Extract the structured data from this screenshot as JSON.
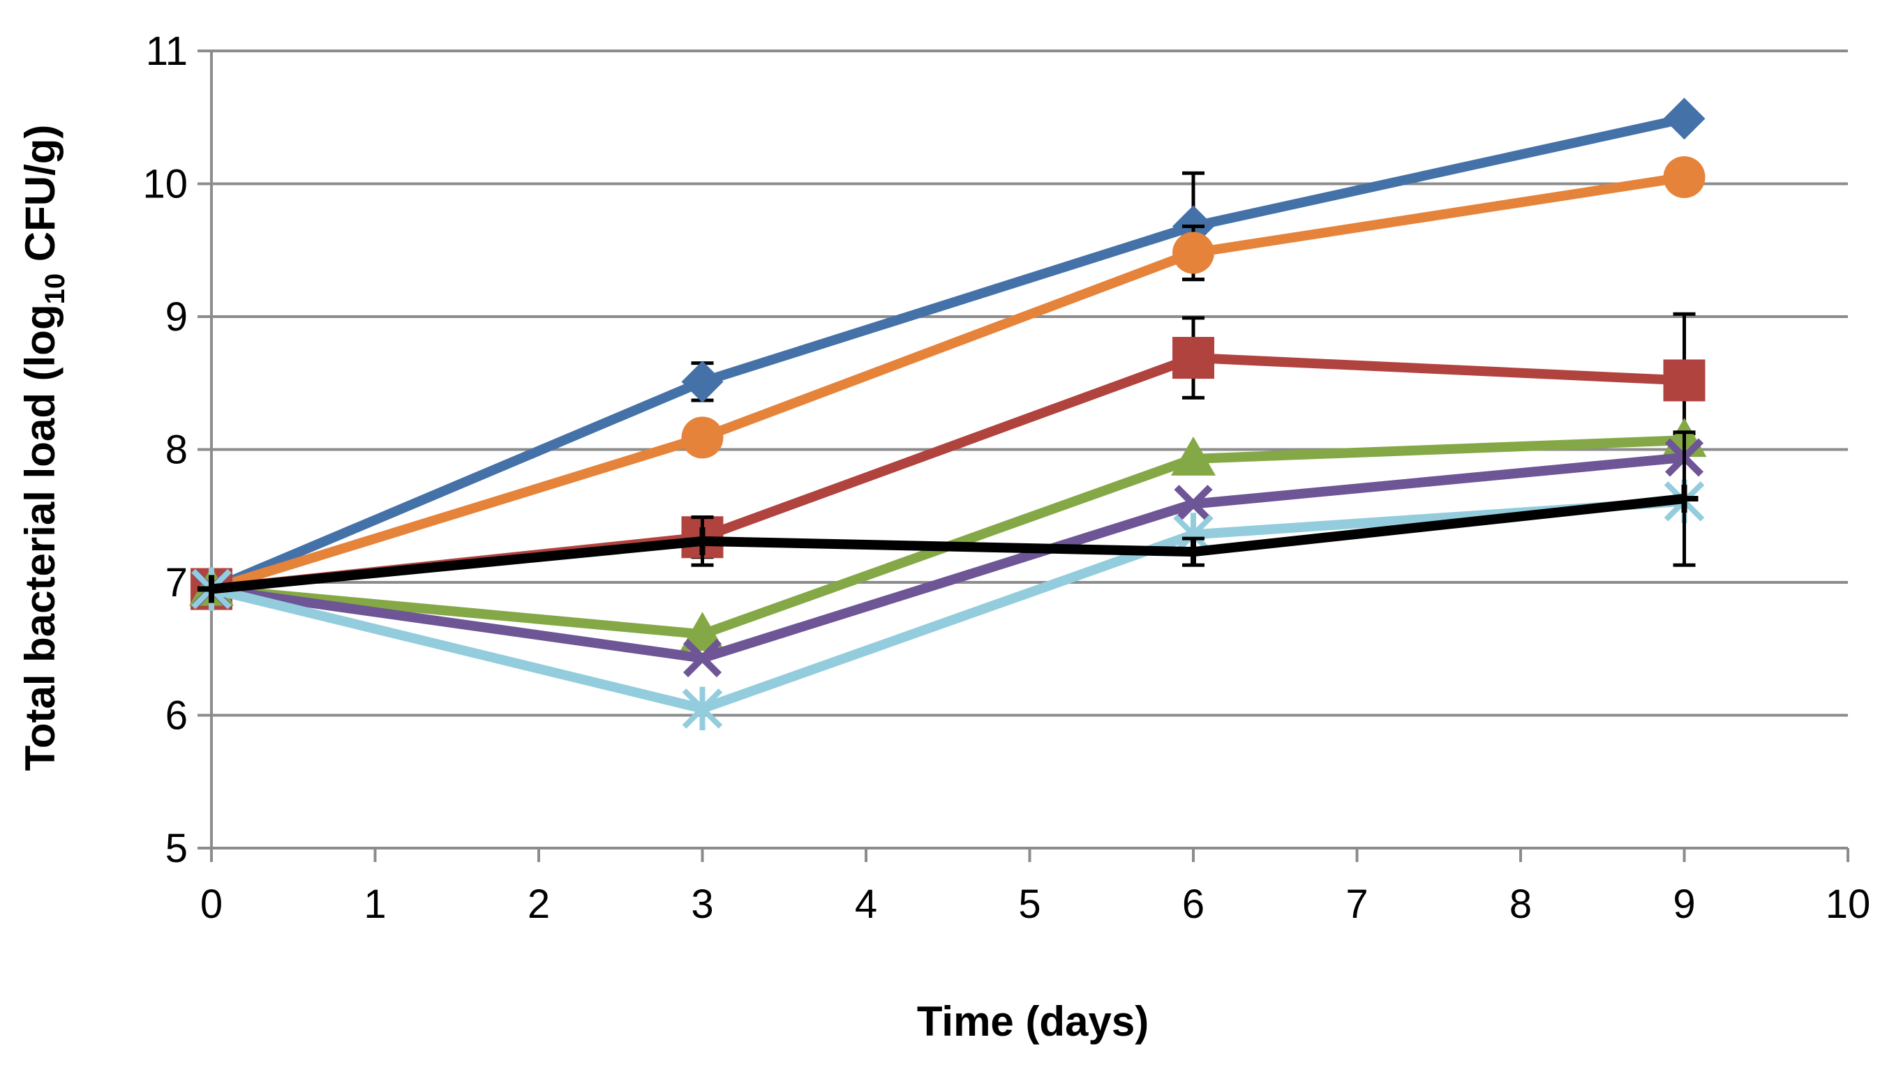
{
  "chart_data": {
    "type": "line",
    "title": "",
    "xlabel": "Time (days)",
    "ylabel_main": "Total bacterial load (log",
    "ylabel_sub": "10",
    "ylabel_tail": " CFU/g)",
    "xlim": [
      0,
      10
    ],
    "ylim": [
      5,
      11
    ],
    "xticks": [
      0,
      1,
      2,
      3,
      4,
      5,
      6,
      7,
      8,
      9,
      10
    ],
    "yticks": [
      5,
      6,
      7,
      8,
      9,
      10,
      11
    ],
    "xtick_labels": [
      "0",
      "1",
      "2",
      "3",
      "4",
      "5",
      "6",
      "7",
      "8",
      "9",
      "10"
    ],
    "ytick_labels": [
      "5",
      "6",
      "7",
      "8",
      "9",
      "10",
      "11"
    ],
    "grid": "horizontal",
    "legend": "none",
    "x": [
      0,
      3,
      6,
      9
    ],
    "series": [
      {
        "name": "blue-diamond",
        "color": "#4472A8",
        "marker": "diamond",
        "values": [
          6.95,
          8.51,
          9.68,
          10.49
        ],
        "err": [
          0,
          0.14,
          0.4,
          0
        ]
      },
      {
        "name": "orange-circle",
        "color": "#E6833A",
        "marker": "circle",
        "values": [
          6.95,
          8.09,
          9.48,
          10.05
        ],
        "err": [
          0,
          0,
          0.2,
          0
        ]
      },
      {
        "name": "red-square",
        "color": "#B1433F",
        "marker": "square",
        "values": [
          6.95,
          7.34,
          8.69,
          8.52
        ],
        "err": [
          0,
          0.15,
          0.3,
          0.5
        ]
      },
      {
        "name": "green-triangle",
        "color": "#84A846",
        "marker": "triangle",
        "values": [
          6.95,
          6.61,
          7.93,
          8.07
        ],
        "err": [
          0,
          0,
          0,
          0.05
        ]
      },
      {
        "name": "purple-x",
        "color": "#6E5596",
        "marker": "x",
        "values": [
          6.95,
          6.43,
          7.59,
          7.94
        ],
        "err": [
          0,
          0,
          0,
          0
        ]
      },
      {
        "name": "lightblue-star",
        "color": "#93CDDD",
        "marker": "star",
        "values": [
          6.95,
          6.05,
          7.36,
          7.61
        ],
        "err": [
          0,
          0,
          0,
          0
        ]
      },
      {
        "name": "black-plus",
        "color": "#000000",
        "marker": "plus",
        "values": [
          6.95,
          7.31,
          7.23,
          7.63
        ],
        "err": [
          0,
          0.18,
          0.1,
          0.5
        ]
      }
    ]
  }
}
